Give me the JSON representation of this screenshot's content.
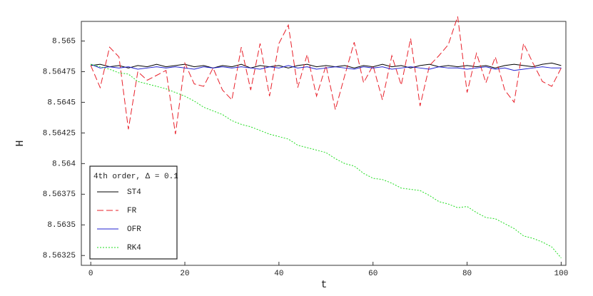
{
  "chart_data": {
    "type": "line",
    "xlabel": "t",
    "ylabel": "H",
    "legend_title": "4th order, Δ = 0.1",
    "legend": "lower left",
    "xlim": [
      -2,
      101
    ],
    "ylim": [
      8.56317,
      8.56516
    ],
    "xticks": [
      0,
      20,
      40,
      60,
      80,
      100
    ],
    "yticks": [
      8.565,
      8.56475,
      8.5645,
      8.56425,
      8.564,
      8.56375,
      8.5635,
      8.56325
    ],
    "x": [
      0,
      2,
      4,
      6,
      8,
      10,
      12,
      14,
      16,
      18,
      20,
      22,
      24,
      26,
      28,
      30,
      32,
      34,
      36,
      38,
      40,
      42,
      44,
      46,
      48,
      50,
      52,
      54,
      56,
      58,
      60,
      62,
      64,
      66,
      68,
      70,
      72,
      74,
      76,
      78,
      80,
      82,
      84,
      86,
      88,
      90,
      92,
      94,
      96,
      98,
      100
    ],
    "series": [
      {
        "name": "ST4",
        "color": "#000000",
        "dash": "solid",
        "values": [
          8.5648,
          8.56481,
          8.56479,
          8.5648,
          8.56478,
          8.5648,
          8.56479,
          8.56481,
          8.56479,
          8.5648,
          8.56481,
          8.56479,
          8.5648,
          8.56478,
          8.5648,
          8.56479,
          8.56481,
          8.56478,
          8.5648,
          8.56479,
          8.5648,
          8.56478,
          8.5648,
          8.56481,
          8.56479,
          8.5648,
          8.56479,
          8.5648,
          8.56478,
          8.5648,
          8.56479,
          8.56481,
          8.56479,
          8.5648,
          8.56478,
          8.5648,
          8.56481,
          8.56479,
          8.5648,
          8.56479,
          8.5648,
          8.56479,
          8.5648,
          8.56478,
          8.5648,
          8.56481,
          8.5648,
          8.56479,
          8.56481,
          8.56482,
          8.5648
        ]
      },
      {
        "name": "FR",
        "color": "#e8202a",
        "dash": "dashed",
        "values": [
          8.5648,
          8.56462,
          8.56495,
          8.56487,
          8.56428,
          8.56475,
          8.56468,
          8.56472,
          8.56476,
          8.56424,
          8.56482,
          8.56465,
          8.56463,
          8.56478,
          8.5646,
          8.56452,
          8.56495,
          8.5646,
          8.56498,
          8.56455,
          8.56498,
          8.56513,
          8.56462,
          8.56489,
          8.56455,
          8.5648,
          8.56444,
          8.56472,
          8.56499,
          8.56466,
          8.5648,
          8.56452,
          8.56488,
          8.56464,
          8.56502,
          8.56447,
          8.5648,
          8.56488,
          8.56497,
          8.5652,
          8.56458,
          8.5649,
          8.56466,
          8.56487,
          8.5646,
          8.5645,
          8.56498,
          8.56482,
          8.56467,
          8.56463,
          8.56478
        ]
      },
      {
        "name": "OFR",
        "color": "#2020d0",
        "dash": "solid",
        "values": [
          8.56481,
          8.56478,
          8.56479,
          8.56478,
          8.56479,
          8.56477,
          8.56478,
          8.56479,
          8.56478,
          8.56479,
          8.56478,
          8.56477,
          8.56479,
          8.56478,
          8.56479,
          8.56478,
          8.56479,
          8.56478,
          8.56477,
          8.56479,
          8.56478,
          8.5648,
          8.56478,
          8.56479,
          8.56477,
          8.56478,
          8.56479,
          8.56478,
          8.56477,
          8.56479,
          8.56478,
          8.56479,
          8.56477,
          8.56478,
          8.56479,
          8.56478,
          8.56477,
          8.56479,
          8.56478,
          8.56478,
          8.56477,
          8.56478,
          8.56479,
          8.56477,
          8.56478,
          8.56476,
          8.56477,
          8.56478,
          8.56479,
          8.56478,
          8.56478
        ]
      },
      {
        "name": "RK4",
        "color": "#22dd22",
        "dash": "dotted",
        "values": [
          8.56481,
          8.56479,
          8.56477,
          8.56474,
          8.56473,
          8.56467,
          8.56465,
          8.56463,
          8.56461,
          8.56458,
          8.56455,
          8.56451,
          8.56446,
          8.56443,
          8.5644,
          8.56435,
          8.56432,
          8.5643,
          8.56427,
          8.56424,
          8.56422,
          8.5642,
          8.56415,
          8.56413,
          8.56411,
          8.56409,
          8.56404,
          8.564,
          8.56398,
          8.56392,
          8.56388,
          8.56387,
          8.56384,
          8.5638,
          8.56379,
          8.56378,
          8.56374,
          8.56369,
          8.56367,
          8.56364,
          8.56365,
          8.5636,
          8.56356,
          8.56355,
          8.56351,
          8.56347,
          8.56341,
          8.56339,
          8.56336,
          8.56332,
          8.56323
        ]
      }
    ]
  }
}
